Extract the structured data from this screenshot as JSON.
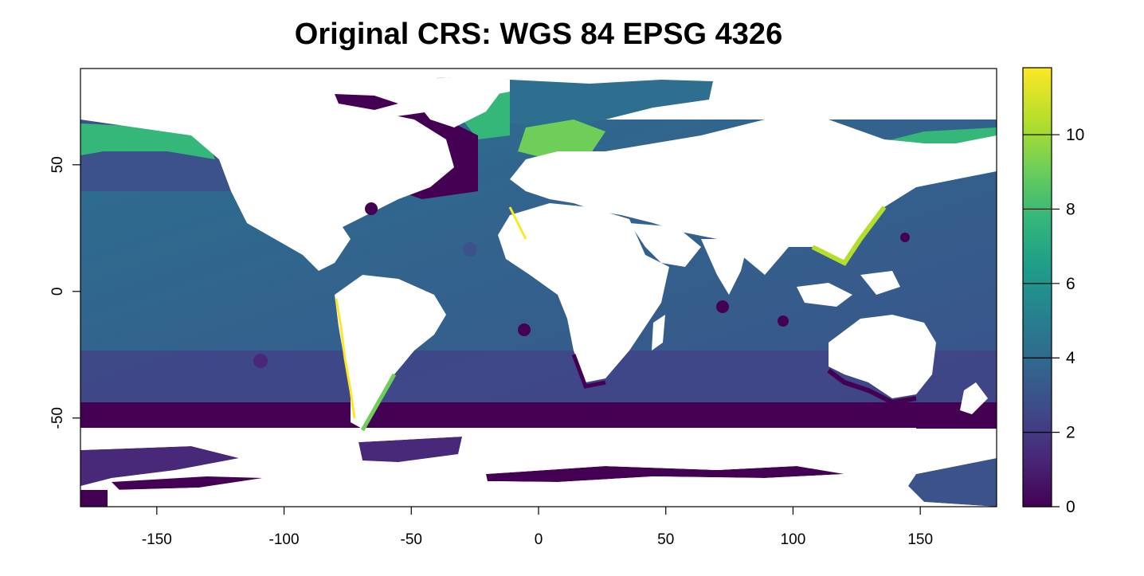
{
  "title": "Original CRS: WGS 84 EPSG 4326",
  "map": {
    "x_ticks": [
      "-150",
      "-100",
      "-50",
      "0",
      "50",
      "100",
      "150"
    ],
    "x_tick_values": [
      -150,
      -100,
      -50,
      0,
      50,
      100,
      150
    ],
    "y_ticks": [
      "-50",
      "0",
      "50"
    ],
    "y_tick_values": [
      -50,
      0,
      50
    ],
    "x_range": [
      -180,
      180
    ],
    "y_range": [
      -85,
      88
    ],
    "land_color": "#ffffff"
  },
  "legend": {
    "ticks": [
      "0",
      "2",
      "4",
      "6",
      "8",
      "10"
    ],
    "tick_values": [
      0,
      2,
      4,
      6,
      8,
      10
    ],
    "range": [
      0,
      11.8
    ],
    "colors": [
      "#440154",
      "#482878",
      "#3e4a89",
      "#31688e",
      "#26828e",
      "#1f9e89",
      "#35b779",
      "#6ece58",
      "#b5de2b",
      "#fde725"
    ]
  }
}
